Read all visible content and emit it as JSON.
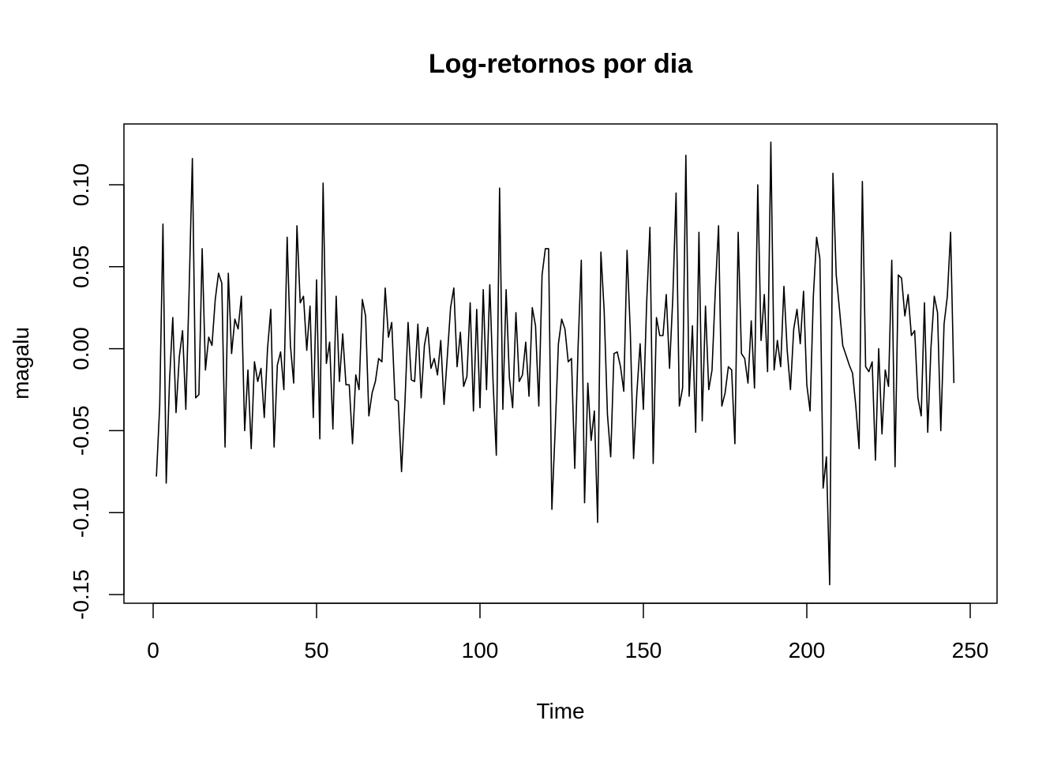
{
  "chart_data": {
    "type": "line",
    "title": "Log-retornos por dia",
    "xlabel": "Time",
    "ylabel": "magalu",
    "xlim": [
      0,
      250
    ],
    "ylim": [
      -0.15,
      0.1
    ],
    "x_ticks": [
      0,
      50,
      100,
      150,
      200,
      250
    ],
    "y_ticks": [
      -0.15,
      -0.1,
      -0.05,
      0.0,
      0.05,
      0.1
    ],
    "x_tick_labels": [
      "0",
      "50",
      "100",
      "150",
      "200",
      "250"
    ],
    "y_tick_labels": [
      "-0.15",
      "-0.10",
      "-0.05",
      "0.00",
      "0.05",
      "0.10"
    ],
    "grid": false,
    "line_color": "#000000",
    "series": [
      {
        "x_start": 1,
        "values": [
          -0.078,
          -0.035,
          0.076,
          -0.082,
          -0.02,
          0.019,
          -0.039,
          -0.005,
          0.011,
          -0.037,
          0.035,
          0.116,
          -0.03,
          -0.028,
          0.061,
          -0.013,
          0.007,
          0.002,
          0.03,
          0.046,
          0.04,
          -0.06,
          0.046,
          -0.003,
          0.018,
          0.012,
          0.032,
          -0.05,
          -0.013,
          -0.061,
          -0.008,
          -0.02,
          -0.012,
          -0.042,
          0.0,
          0.024,
          -0.06,
          -0.01,
          -0.002,
          -0.025,
          0.068,
          0.002,
          -0.021,
          0.075,
          0.028,
          0.032,
          -0.001,
          0.026,
          -0.042,
          0.042,
          -0.055,
          0.101,
          -0.009,
          0.004,
          -0.049,
          0.032,
          -0.02,
          0.009,
          -0.022,
          -0.022,
          -0.058,
          -0.016,
          -0.025,
          0.03,
          0.02,
          -0.041,
          -0.027,
          -0.02,
          -0.006,
          -0.008,
          0.037,
          0.007,
          0.016,
          -0.031,
          -0.032,
          -0.075,
          -0.035,
          0.016,
          -0.019,
          -0.02,
          0.015,
          -0.03,
          0.002,
          0.013,
          -0.012,
          -0.006,
          -0.016,
          0.005,
          -0.034,
          -0.005,
          0.025,
          0.037,
          -0.011,
          0.01,
          -0.023,
          -0.017,
          0.028,
          -0.038,
          0.024,
          -0.036,
          0.036,
          -0.025,
          0.039,
          -0.02,
          -0.065,
          0.098,
          -0.037,
          0.036,
          -0.018,
          -0.036,
          0.022,
          -0.02,
          -0.016,
          0.004,
          -0.029,
          0.025,
          0.014,
          -0.035,
          0.045,
          0.061,
          0.061,
          -0.098,
          -0.05,
          0.003,
          0.018,
          0.012,
          -0.008,
          -0.006,
          -0.073,
          0.0,
          0.054,
          -0.094,
          -0.021,
          -0.056,
          -0.038,
          -0.106,
          0.059,
          0.023,
          -0.04,
          -0.066,
          -0.003,
          -0.002,
          -0.011,
          -0.026,
          0.06,
          0.01,
          -0.067,
          -0.027,
          0.003,
          -0.037,
          0.028,
          0.074,
          -0.07,
          0.019,
          0.008,
          0.008,
          0.033,
          -0.012,
          0.031,
          0.095,
          -0.035,
          -0.024,
          0.118,
          -0.029,
          0.014,
          -0.051,
          0.071,
          -0.044,
          0.026,
          -0.025,
          -0.013,
          0.035,
          0.075,
          -0.035,
          -0.027,
          -0.011,
          -0.013,
          -0.058,
          0.071,
          -0.003,
          -0.006,
          -0.021,
          0.017,
          -0.024,
          0.1,
          0.005,
          0.033,
          -0.014,
          0.126,
          -0.013,
          0.005,
          -0.011,
          0.038,
          -0.001,
          -0.025,
          0.012,
          0.024,
          0.003,
          0.035,
          -0.022,
          -0.038,
          0.032,
          0.068,
          0.055,
          -0.085,
          -0.066,
          -0.144,
          0.107,
          0.045,
          0.024,
          0.002,
          -0.004,
          -0.01,
          -0.015,
          -0.035,
          -0.061,
          0.102,
          -0.011,
          -0.014,
          -0.008,
          -0.068,
          0.0,
          -0.052,
          -0.013,
          -0.023,
          0.054,
          -0.072,
          0.045,
          0.043,
          0.02,
          0.033,
          0.008,
          0.011,
          -0.03,
          -0.041,
          0.028,
          -0.051,
          0.001,
          0.032,
          0.022,
          -0.05,
          0.015,
          0.032,
          0.071,
          -0.021
        ]
      }
    ]
  }
}
